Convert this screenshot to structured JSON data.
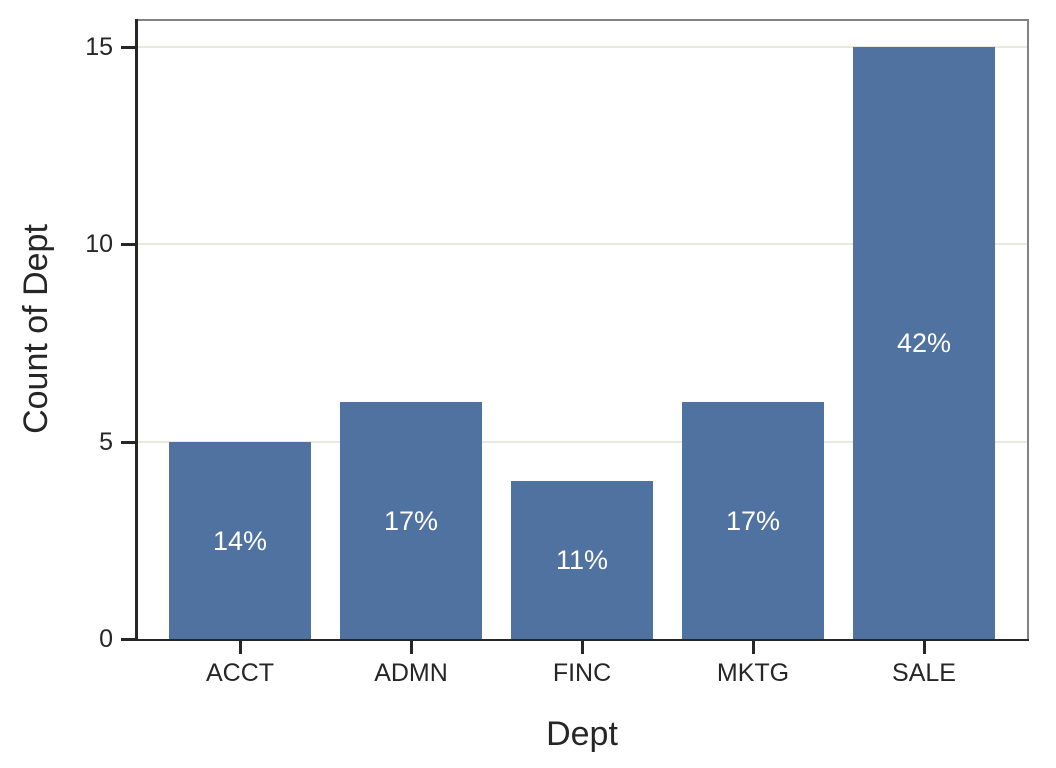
{
  "chart_data": {
    "type": "bar",
    "title": "",
    "xlabel": "Dept",
    "ylabel": "Count of Dept",
    "categories": [
      "ACCT",
      "ADMN",
      "FINC",
      "MKTG",
      "SALE"
    ],
    "values": [
      5,
      6,
      4,
      6,
      15
    ],
    "bar_labels": [
      "14%",
      "17%",
      "11%",
      "17%",
      "42%"
    ],
    "yticks": [
      0,
      5,
      10,
      15
    ],
    "ylim": [
      0,
      15.71
    ],
    "grid": "horizontal-only",
    "legend": "none",
    "colors": {
      "bar": "#4F72A0",
      "bar_label_text": "#FFFFFF",
      "gridline": "#ECE8E0",
      "frame": "#828282",
      "axis": "#262626",
      "text": "#262626",
      "background": "#FFFFFF"
    }
  }
}
